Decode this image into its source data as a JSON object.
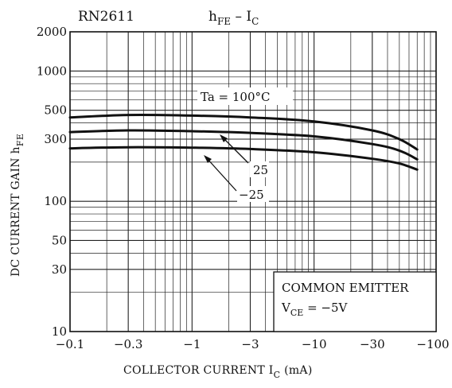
{
  "chart_data": {
    "type": "line",
    "part_number": "RN2611",
    "title_main": "h",
    "title_sub_1": "FE",
    "title_dash": " – I",
    "title_sub_2": "C",
    "xlabel_main": "COLLECTOR CURRENT  I",
    "xlabel_sub": "C",
    "xlabel_unit": "  (mA)",
    "ylabel_main": "DC CURRENT GAIN  h",
    "ylabel_sub": "FE",
    "x_scale": "log",
    "y_scale": "log",
    "xlim": [
      -0.1,
      -100
    ],
    "ylim": [
      10,
      2000
    ],
    "x_ticks": [
      {
        "value": -0.1,
        "label": "−0.1"
      },
      {
        "value": -0.3,
        "label": "−0.3"
      },
      {
        "value": -1,
        "label": "−1"
      },
      {
        "value": -3,
        "label": "−3"
      },
      {
        "value": -10,
        "label": "−10"
      },
      {
        "value": -30,
        "label": "−30"
      },
      {
        "value": -100,
        "label": "−100"
      }
    ],
    "y_ticks": [
      {
        "value": 10,
        "label": "10"
      },
      {
        "value": 30,
        "label": "30"
      },
      {
        "value": 50,
        "label": "50"
      },
      {
        "value": 100,
        "label": "100"
      },
      {
        "value": 300,
        "label": "300"
      },
      {
        "value": 500,
        "label": "500"
      },
      {
        "value": 1000,
        "label": "1000"
      },
      {
        "value": 2000,
        "label": "2000"
      }
    ],
    "grid": true,
    "series": [
      {
        "name": "Ta=100°C",
        "x": [
          -0.1,
          -0.3,
          -1,
          -3,
          -10,
          -30,
          -50,
          -70
        ],
        "y": [
          440,
          460,
          455,
          440,
          410,
          350,
          300,
          250
        ]
      },
      {
        "name": "25",
        "x": [
          -0.1,
          -0.3,
          -1,
          -3,
          -10,
          -30,
          -50,
          -70
        ],
        "y": [
          340,
          350,
          345,
          335,
          315,
          275,
          245,
          210
        ]
      },
      {
        "name": "−25",
        "x": [
          -0.1,
          -0.3,
          -1,
          -3,
          -10,
          -30,
          -50,
          -70
        ],
        "y": [
          255,
          260,
          258,
          252,
          238,
          212,
          195,
          175
        ]
      }
    ],
    "annotations": {
      "ta100": "Ta = 100°C",
      "t25": "25",
      "tm25": "−25",
      "box_line1": "COMMON EMITTER",
      "box_line2_main": "V",
      "box_line2_sub": "CE",
      "box_line2_rest": " = −5V"
    }
  }
}
